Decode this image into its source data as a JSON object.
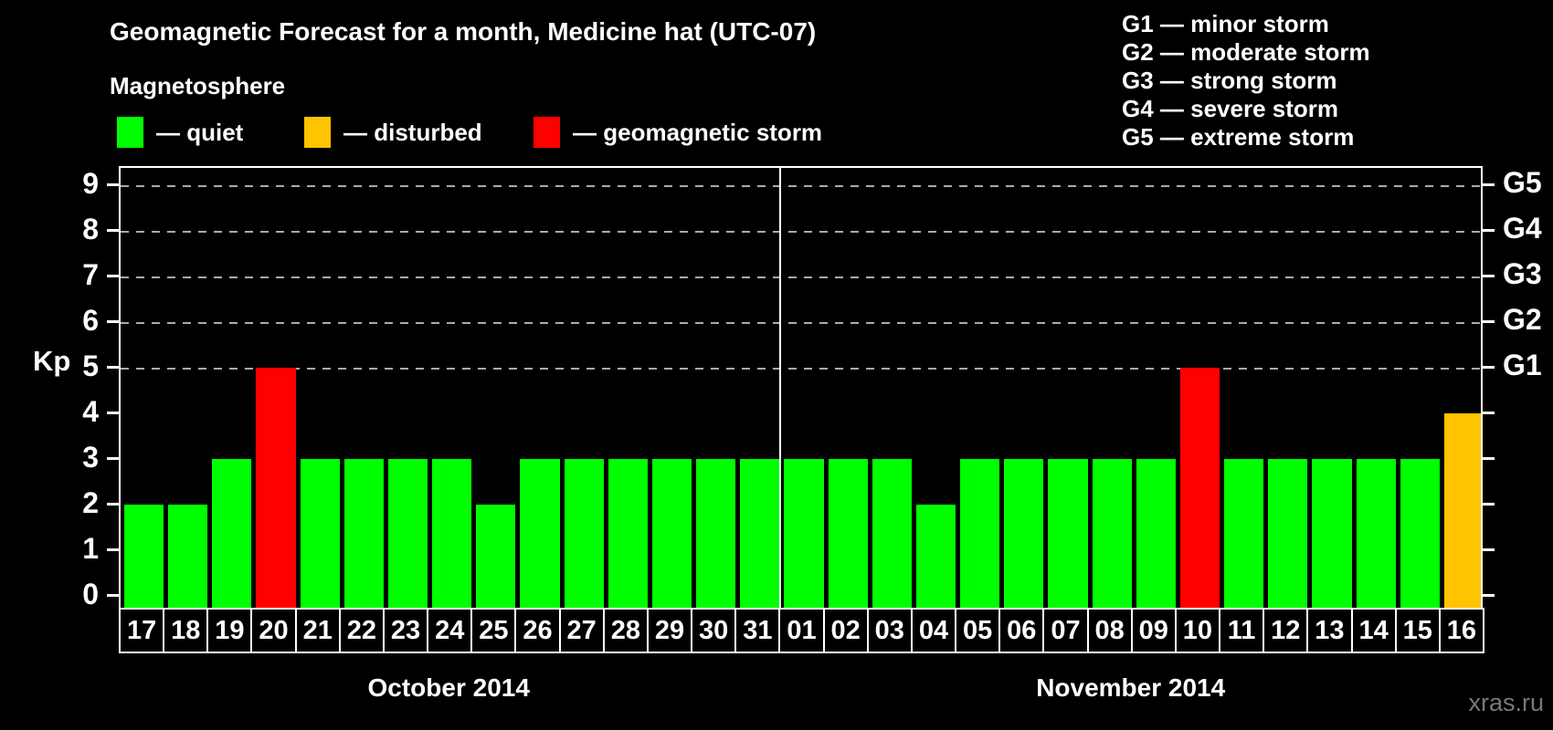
{
  "header": {
    "title": "Geomagnetic Forecast for a month, Medicine hat (UTC-07)",
    "subtitle": "Magnetosphere"
  },
  "legend": {
    "items": [
      {
        "name": "quiet",
        "label": "— quiet",
        "color": "#00ff00"
      },
      {
        "name": "disturbed",
        "label": "— disturbed",
        "color": "#ffc300"
      },
      {
        "name": "geomagnetic-storm",
        "label": "— geomagnetic storm",
        "color": "#ff0000"
      }
    ]
  },
  "g_scale_legend": {
    "items": [
      "G1 — minor storm",
      "G2 — moderate storm",
      "G3 — strong storm",
      "G4 — severe storm",
      "G5 — extreme storm"
    ]
  },
  "colors": {
    "quiet": "#00ff00",
    "disturbed": "#ffc300",
    "storm": "#ff0000",
    "background": "#000000",
    "text": "#ffffff",
    "grid": "#aaaaaa",
    "axis": "#ffffff",
    "watermark": "#787878"
  },
  "chart_data": {
    "type": "bar",
    "title": "Geomagnetic Forecast for a month, Medicine hat (UTC-07)",
    "xlabel": "",
    "ylabel": "Kp",
    "ylim": [
      -0.32,
      9.4
    ],
    "y_ticks": [
      0,
      1,
      2,
      3,
      4,
      5,
      6,
      7,
      8,
      9
    ],
    "grid": "horizontal dashed lines at Kp 5-9 only",
    "legend_position": "top-left",
    "g_levels": [
      {
        "kp": 5,
        "label": "G1"
      },
      {
        "kp": 6,
        "label": "G2"
      },
      {
        "kp": 7,
        "label": "G3"
      },
      {
        "kp": 8,
        "label": "G4"
      },
      {
        "kp": 9,
        "label": "G5"
      }
    ],
    "groups": [
      {
        "month_label": "October 2014",
        "days": [
          {
            "day": "17",
            "kp": 2,
            "status": "quiet"
          },
          {
            "day": "18",
            "kp": 2,
            "status": "quiet"
          },
          {
            "day": "19",
            "kp": 3,
            "status": "quiet"
          },
          {
            "day": "20",
            "kp": 5,
            "status": "storm"
          },
          {
            "day": "21",
            "kp": 3,
            "status": "quiet"
          },
          {
            "day": "22",
            "kp": 3,
            "status": "quiet"
          },
          {
            "day": "23",
            "kp": 3,
            "status": "quiet"
          },
          {
            "day": "24",
            "kp": 3,
            "status": "quiet"
          },
          {
            "day": "25",
            "kp": 2,
            "status": "quiet"
          },
          {
            "day": "26",
            "kp": 3,
            "status": "quiet"
          },
          {
            "day": "27",
            "kp": 3,
            "status": "quiet"
          },
          {
            "day": "28",
            "kp": 3,
            "status": "quiet"
          },
          {
            "day": "29",
            "kp": 3,
            "status": "quiet"
          },
          {
            "day": "30",
            "kp": 3,
            "status": "quiet"
          },
          {
            "day": "31",
            "kp": 3,
            "status": "quiet"
          }
        ]
      },
      {
        "month_label": "November 2014",
        "days": [
          {
            "day": "01",
            "kp": 3,
            "status": "quiet"
          },
          {
            "day": "02",
            "kp": 3,
            "status": "quiet"
          },
          {
            "day": "03",
            "kp": 3,
            "status": "quiet"
          },
          {
            "day": "04",
            "kp": 2,
            "status": "quiet"
          },
          {
            "day": "05",
            "kp": 3,
            "status": "quiet"
          },
          {
            "day": "06",
            "kp": 3,
            "status": "quiet"
          },
          {
            "day": "07",
            "kp": 3,
            "status": "quiet"
          },
          {
            "day": "08",
            "kp": 3,
            "status": "quiet"
          },
          {
            "day": "09",
            "kp": 3,
            "status": "quiet"
          },
          {
            "day": "10",
            "kp": 5,
            "status": "storm"
          },
          {
            "day": "11",
            "kp": 3,
            "status": "quiet"
          },
          {
            "day": "12",
            "kp": 3,
            "status": "quiet"
          },
          {
            "day": "13",
            "kp": 3,
            "status": "quiet"
          },
          {
            "day": "14",
            "kp": 3,
            "status": "quiet"
          },
          {
            "day": "15",
            "kp": 3,
            "status": "quiet"
          },
          {
            "day": "16",
            "kp": 4,
            "status": "disturbed"
          }
        ]
      }
    ]
  },
  "footer": {
    "watermark": "xras.ru"
  }
}
